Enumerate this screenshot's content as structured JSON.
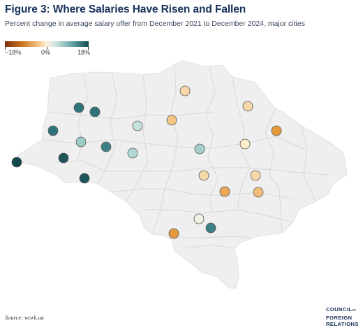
{
  "header": {
    "title": "Figure 3: Where Salaries Have Risen and Fallen",
    "subtitle": "Percent change in average salary offer from December 2021 to December 2024, major cities"
  },
  "legend": {
    "labels": [
      "−18%",
      "0%",
      "18%"
    ],
    "min": -18,
    "max": 18
  },
  "colors": {
    "country_fill": "#efefef",
    "border": "#d8d8d8",
    "strong_negative": "#7a2e0c",
    "neutral": "#fdf1d8",
    "strong_positive": "#14484c"
  },
  "footer": {
    "source": "Source: work.ua",
    "logo_lines": [
      "COUNCIL",
      "FOREIGN",
      "RELATIONS"
    ],
    "logo_small": "on"
  }
}
